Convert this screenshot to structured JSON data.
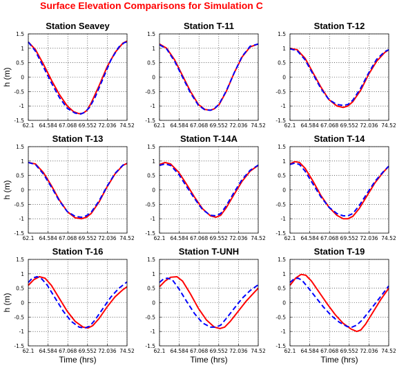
{
  "figure": {
    "title": "Surface Elevation Comparisons for Simulation C"
  },
  "colors": {
    "title": "#ff0000",
    "model": "#ff0000",
    "observed": "#0000ff"
  },
  "chart_data": [
    {
      "type": "line",
      "title": "Station Seavey",
      "ylabel": "h (m)",
      "xlabel": "",
      "xlim": [
        62.1,
        74.52
      ],
      "ylim": [
        -1.5,
        1.5
      ],
      "xticks": [
        "62.1",
        "64.584",
        "67.068",
        "69.552",
        "72.036",
        "74.52"
      ],
      "yticks": [
        "1.5",
        "1",
        "0.5",
        "0",
        "-0.5",
        "-1",
        "-1.5"
      ],
      "grid": true,
      "series": [
        {
          "style": "solid-red",
          "x": [
            62.1,
            63.0,
            64.0,
            65.0,
            66.0,
            67.0,
            67.8,
            68.5,
            69.0,
            69.5,
            70.0,
            71.0,
            72.0,
            73.0,
            74.0,
            74.52
          ],
          "y": [
            1.22,
            0.95,
            0.45,
            -0.1,
            -0.6,
            -1.0,
            -1.2,
            -1.27,
            -1.25,
            -1.15,
            -0.9,
            -0.3,
            0.35,
            0.85,
            1.18,
            1.25
          ]
        },
        {
          "style": "dashed-blue",
          "x": [
            62.1,
            63.0,
            64.0,
            65.0,
            66.0,
            67.0,
            68.0,
            68.7,
            69.2,
            69.8,
            70.5,
            71.5,
            72.5,
            73.5,
            74.2,
            74.52
          ],
          "y": [
            1.22,
            0.9,
            0.35,
            -0.2,
            -0.7,
            -1.08,
            -1.25,
            -1.28,
            -1.22,
            -1.05,
            -0.7,
            -0.05,
            0.6,
            1.05,
            1.2,
            1.22
          ]
        }
      ]
    },
    {
      "type": "line",
      "title": "Station T-11",
      "xlabel": "",
      "ylabel": "",
      "xlim": [
        62.1,
        74.52
      ],
      "ylim": [
        -1.5,
        1.5
      ],
      "xticks": [
        "62.1",
        "64.584",
        "67.068",
        "69.552",
        "72.036",
        "74.52"
      ],
      "yticks": [
        "1.5",
        "1",
        "0.5",
        "0",
        "-0.5",
        "-1",
        "-1.5"
      ],
      "grid": true,
      "series": [
        {
          "style": "solid-red",
          "x": [
            62.1,
            63.0,
            64.0,
            65.0,
            66.0,
            67.0,
            67.8,
            68.5,
            69.0,
            69.6,
            70.5,
            71.5,
            72.5,
            73.5,
            74.52
          ],
          "y": [
            1.15,
            1.0,
            0.6,
            0.05,
            -0.5,
            -0.95,
            -1.12,
            -1.15,
            -1.1,
            -0.95,
            -0.5,
            0.15,
            0.7,
            1.05,
            1.15
          ]
        },
        {
          "style": "dashed-blue",
          "x": [
            62.1,
            63.0,
            64.0,
            65.0,
            66.0,
            67.0,
            67.8,
            68.5,
            69.0,
            69.6,
            70.5,
            71.5,
            72.5,
            73.5,
            74.52
          ],
          "y": [
            1.12,
            0.98,
            0.55,
            0.0,
            -0.55,
            -0.98,
            -1.13,
            -1.15,
            -1.1,
            -0.93,
            -0.48,
            0.15,
            0.72,
            1.07,
            1.15
          ]
        }
      ]
    },
    {
      "type": "line",
      "title": "Station T-12",
      "xlabel": "",
      "ylabel": "",
      "xlim": [
        62.1,
        74.52
      ],
      "ylim": [
        -1.5,
        1.5
      ],
      "xticks": [
        "62.1",
        "64.584",
        "67.068",
        "69.552",
        "72.036",
        "74.52"
      ],
      "yticks": [
        "1.5",
        "1",
        "0.5",
        "0",
        "-0.5",
        "-1",
        "-1.5"
      ],
      "grid": true,
      "series": [
        {
          "style": "solid-red",
          "x": [
            62.1,
            63.0,
            64.0,
            65.0,
            66.0,
            67.0,
            68.0,
            68.8,
            69.4,
            70.0,
            71.0,
            72.0,
            73.0,
            74.0,
            74.52
          ],
          "y": [
            1.0,
            0.95,
            0.65,
            0.15,
            -0.35,
            -0.78,
            -1.0,
            -1.05,
            -1.0,
            -0.85,
            -0.45,
            0.1,
            0.55,
            0.85,
            0.95
          ]
        },
        {
          "style": "dashed-blue",
          "x": [
            62.1,
            63.0,
            64.0,
            65.0,
            66.0,
            67.0,
            68.0,
            68.8,
            69.4,
            70.0,
            71.0,
            72.0,
            73.0,
            74.0,
            74.52
          ],
          "y": [
            0.98,
            0.92,
            0.6,
            0.1,
            -0.4,
            -0.78,
            -0.95,
            -0.98,
            -0.95,
            -0.8,
            -0.38,
            0.15,
            0.62,
            0.88,
            0.95
          ]
        }
      ]
    },
    {
      "type": "line",
      "title": "Station T-13",
      "ylabel": "h (m)",
      "xlabel": "",
      "xlim": [
        62.1,
        74.52
      ],
      "ylim": [
        -1.5,
        1.5
      ],
      "xticks": [
        "62.1",
        "64.584",
        "67.068",
        "69.552",
        "72.036",
        "74.52"
      ],
      "yticks": [
        "1.5",
        "1",
        "0.5",
        "0",
        "-0.5",
        "-1",
        "-1.5"
      ],
      "grid": true,
      "series": [
        {
          "style": "solid-red",
          "x": [
            62.1,
            63.0,
            64.0,
            65.0,
            66.0,
            67.0,
            68.0,
            68.8,
            69.4,
            70.0,
            71.0,
            72.0,
            73.0,
            74.0,
            74.52
          ],
          "y": [
            0.95,
            0.9,
            0.6,
            0.15,
            -0.35,
            -0.75,
            -0.97,
            -1.0,
            -0.95,
            -0.82,
            -0.42,
            0.1,
            0.55,
            0.85,
            0.92
          ]
        },
        {
          "style": "dashed-blue",
          "x": [
            62.1,
            63.0,
            64.0,
            65.0,
            66.0,
            67.0,
            68.0,
            68.8,
            69.4,
            70.0,
            71.0,
            72.0,
            73.0,
            74.0,
            74.52
          ],
          "y": [
            0.95,
            0.88,
            0.55,
            0.1,
            -0.38,
            -0.75,
            -0.92,
            -0.95,
            -0.9,
            -0.78,
            -0.38,
            0.12,
            0.57,
            0.86,
            0.92
          ]
        }
      ]
    },
    {
      "type": "line",
      "title": "Station T-14A",
      "xlabel": "",
      "ylabel": "",
      "xlim": [
        62.1,
        74.52
      ],
      "ylim": [
        -1.5,
        1.5
      ],
      "xticks": [
        "62.1",
        "64.584",
        "67.068",
        "69.552",
        "72.036",
        "74.52"
      ],
      "yticks": [
        "1.5",
        "1",
        "0.5",
        "0",
        "-0.5",
        "-1",
        "-1.5"
      ],
      "grid": true,
      "series": [
        {
          "style": "solid-red",
          "x": [
            62.1,
            62.8,
            63.5,
            64.5,
            65.5,
            66.5,
            67.5,
            68.5,
            69.2,
            69.8,
            70.5,
            71.5,
            72.5,
            73.5,
            74.52
          ],
          "y": [
            0.88,
            0.95,
            0.9,
            0.62,
            0.2,
            -0.25,
            -0.65,
            -0.9,
            -0.95,
            -0.88,
            -0.62,
            -0.15,
            0.3,
            0.65,
            0.85
          ]
        },
        {
          "style": "dashed-blue",
          "x": [
            62.1,
            62.8,
            63.5,
            64.5,
            65.5,
            66.5,
            67.5,
            68.5,
            69.2,
            69.8,
            70.5,
            71.5,
            72.5,
            73.5,
            74.52
          ],
          "y": [
            0.85,
            0.9,
            0.85,
            0.55,
            0.12,
            -0.3,
            -0.68,
            -0.88,
            -0.9,
            -0.82,
            -0.55,
            -0.08,
            0.36,
            0.68,
            0.86
          ]
        }
      ]
    },
    {
      "type": "line",
      "title": "Station T-14",
      "xlabel": "",
      "ylabel": "",
      "xlim": [
        62.1,
        74.52
      ],
      "ylim": [
        -1.5,
        1.5
      ],
      "xticks": [
        "62.1",
        "64.584",
        "67.068",
        "69.552",
        "72.036",
        "74.52"
      ],
      "yticks": [
        "1.5",
        "1",
        "0.5",
        "0",
        "-0.5",
        "-1",
        "-1.5"
      ],
      "grid": true,
      "series": [
        {
          "style": "solid-red",
          "x": [
            62.1,
            62.7,
            63.3,
            64.0,
            65.0,
            66.0,
            67.0,
            68.0,
            68.8,
            69.4,
            70.0,
            70.8,
            71.8,
            72.8,
            73.8,
            74.52
          ],
          "y": [
            0.9,
            0.98,
            0.95,
            0.75,
            0.3,
            -0.2,
            -0.6,
            -0.88,
            -1.0,
            -1.0,
            -0.92,
            -0.65,
            -0.2,
            0.25,
            0.6,
            0.82
          ]
        },
        {
          "style": "dashed-blue",
          "x": [
            62.1,
            62.7,
            63.3,
            64.0,
            65.0,
            66.0,
            67.0,
            68.0,
            68.8,
            69.4,
            70.0,
            70.8,
            71.8,
            72.8,
            73.8,
            74.52
          ],
          "y": [
            0.88,
            0.93,
            0.88,
            0.65,
            0.2,
            -0.25,
            -0.6,
            -0.82,
            -0.9,
            -0.9,
            -0.82,
            -0.55,
            -0.12,
            0.3,
            0.62,
            0.82
          ]
        }
      ]
    },
    {
      "type": "line",
      "title": "Station T-16",
      "ylabel": "h (m)",
      "xlabel": "Time (hrs)",
      "xlim": [
        62.1,
        74.52
      ],
      "ylim": [
        -1.5,
        1.5
      ],
      "xticks": [
        "62.1",
        "64.584",
        "67.068",
        "69.552",
        "72.036",
        "74.52"
      ],
      "yticks": [
        "1.5",
        "1",
        "0.5",
        "0",
        "-0.5",
        "-1",
        "-1.5"
      ],
      "grid": true,
      "series": [
        {
          "style": "solid-red",
          "x": [
            62.1,
            62.8,
            63.5,
            64.2,
            65.0,
            66.0,
            67.0,
            68.0,
            69.0,
            69.6,
            70.2,
            71.0,
            72.0,
            73.0,
            74.0,
            74.52
          ],
          "y": [
            0.6,
            0.8,
            0.9,
            0.85,
            0.6,
            0.15,
            -0.3,
            -0.65,
            -0.85,
            -0.88,
            -0.8,
            -0.55,
            -0.15,
            0.2,
            0.45,
            0.55
          ]
        },
        {
          "style": "dashed-blue",
          "x": [
            62.1,
            62.6,
            63.2,
            63.8,
            64.5,
            65.5,
            66.5,
            67.5,
            68.5,
            69.2,
            69.8,
            70.5,
            71.5,
            72.5,
            73.5,
            74.52
          ],
          "y": [
            0.7,
            0.85,
            0.9,
            0.82,
            0.6,
            0.15,
            -0.3,
            -0.65,
            -0.85,
            -0.88,
            -0.82,
            -0.6,
            -0.2,
            0.2,
            0.5,
            0.72
          ]
        }
      ]
    },
    {
      "type": "line",
      "title": "Station T-UNH",
      "xlabel": "Time (hrs)",
      "ylabel": "",
      "xlim": [
        62.1,
        74.52
      ],
      "ylim": [
        -1.5,
        1.5
      ],
      "xticks": [
        "62.1",
        "64.584",
        "67.068",
        "69.552",
        "72.036",
        "74.52"
      ],
      "yticks": [
        "1.5",
        "1",
        "0.5",
        "0",
        "-0.5",
        "-1",
        "-1.5"
      ],
      "grid": true,
      "series": [
        {
          "style": "solid-red",
          "x": [
            62.1,
            62.8,
            63.5,
            64.3,
            65.0,
            66.0,
            67.0,
            68.0,
            69.0,
            69.7,
            70.3,
            71.0,
            72.0,
            73.0,
            74.0,
            74.52
          ],
          "y": [
            0.55,
            0.75,
            0.88,
            0.9,
            0.75,
            0.3,
            -0.2,
            -0.6,
            -0.85,
            -0.9,
            -0.85,
            -0.65,
            -0.3,
            0.05,
            0.35,
            0.5
          ]
        },
        {
          "style": "dashed-blue",
          "x": [
            62.1,
            62.6,
            63.1,
            63.7,
            64.5,
            65.5,
            66.5,
            67.5,
            68.5,
            69.2,
            69.8,
            70.5,
            71.5,
            72.5,
            73.5,
            74.52
          ],
          "y": [
            0.7,
            0.82,
            0.85,
            0.8,
            0.5,
            0.05,
            -0.38,
            -0.7,
            -0.85,
            -0.85,
            -0.78,
            -0.55,
            -0.2,
            0.15,
            0.42,
            0.62
          ]
        }
      ]
    },
    {
      "type": "line",
      "title": "Station T-19",
      "xlabel": "Time (hrs)",
      "ylabel": "",
      "xlim": [
        62.1,
        74.52
      ],
      "ylim": [
        -1.5,
        1.5
      ],
      "xticks": [
        "62.1",
        "64.584",
        "67.068",
        "69.552",
        "72.036",
        "74.52"
      ],
      "yticks": [
        "1.5",
        "1",
        "0.5",
        "0",
        "-0.5",
        "-1",
        "-1.5"
      ],
      "grid": true,
      "series": [
        {
          "style": "solid-red",
          "x": [
            62.1,
            62.8,
            63.5,
            64.1,
            64.8,
            65.8,
            66.8,
            67.8,
            68.8,
            69.8,
            70.5,
            71.0,
            71.6,
            72.5,
            73.5,
            74.52
          ],
          "y": [
            0.6,
            0.85,
            0.98,
            0.95,
            0.75,
            0.35,
            -0.05,
            -0.42,
            -0.72,
            -0.92,
            -1.0,
            -0.95,
            -0.75,
            -0.35,
            0.1,
            0.5
          ]
        },
        {
          "style": "dashed-blue",
          "x": [
            62.1,
            62.6,
            63.1,
            63.6,
            64.3,
            65.3,
            66.3,
            67.3,
            68.3,
            69.3,
            69.9,
            70.5,
            71.2,
            72.2,
            73.2,
            74.52
          ],
          "y": [
            0.7,
            0.82,
            0.85,
            0.78,
            0.55,
            0.2,
            -0.15,
            -0.45,
            -0.68,
            -0.83,
            -0.85,
            -0.78,
            -0.6,
            -0.25,
            0.1,
            0.58
          ]
        }
      ]
    }
  ]
}
